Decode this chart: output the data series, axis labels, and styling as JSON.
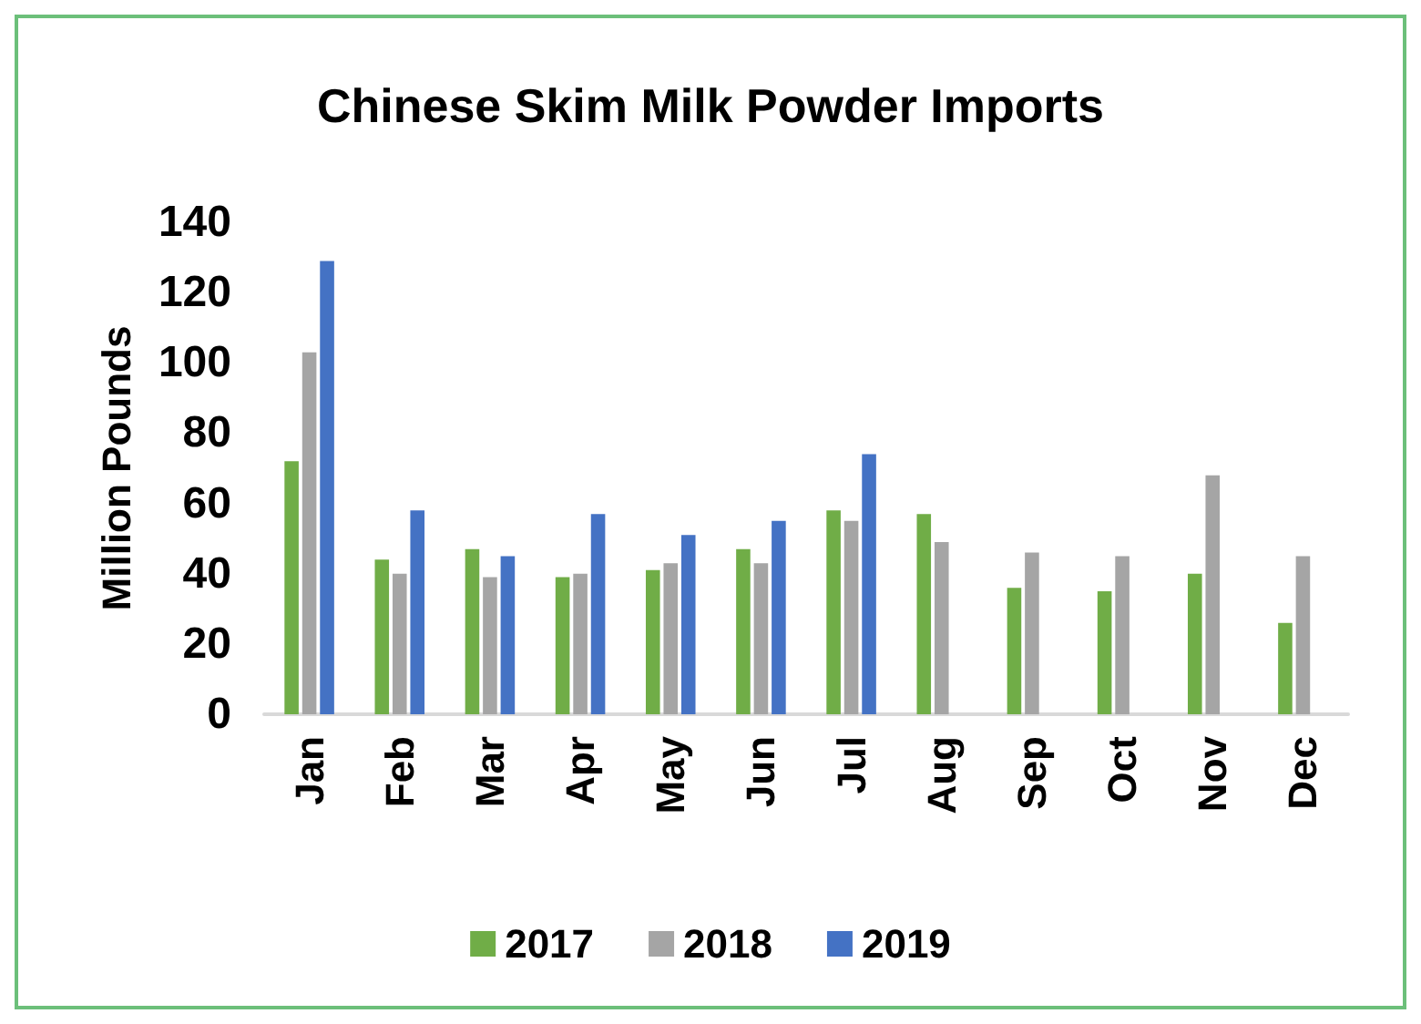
{
  "chart_data": {
    "type": "bar",
    "title": "Chinese Skim Milk Powder Imports",
    "ylabel": "Million Pounds",
    "categories": [
      "Jan",
      "Feb",
      "Mar",
      "Apr",
      "May",
      "Jun",
      "Jul",
      "Aug",
      "Sep",
      "Oct",
      "Nov",
      "Dec"
    ],
    "series": [
      {
        "name": "2017",
        "color": "#70ad47",
        "values": [
          72,
          44,
          47,
          39,
          41,
          47,
          58,
          57,
          36,
          35,
          40,
          26
        ]
      },
      {
        "name": "2018",
        "color": "#a5a5a5",
        "values": [
          103,
          40,
          39,
          40,
          43,
          43,
          55,
          49,
          46,
          45,
          68,
          45
        ]
      },
      {
        "name": "2019",
        "color": "#4472c4",
        "values": [
          129,
          58,
          45,
          57,
          51,
          55,
          74,
          null,
          null,
          null,
          null,
          null
        ]
      }
    ],
    "ylim": [
      0,
      140
    ],
    "yticks": [
      0,
      20,
      40,
      60,
      80,
      100,
      120,
      140
    ],
    "grid": false,
    "legend": "bottom"
  }
}
